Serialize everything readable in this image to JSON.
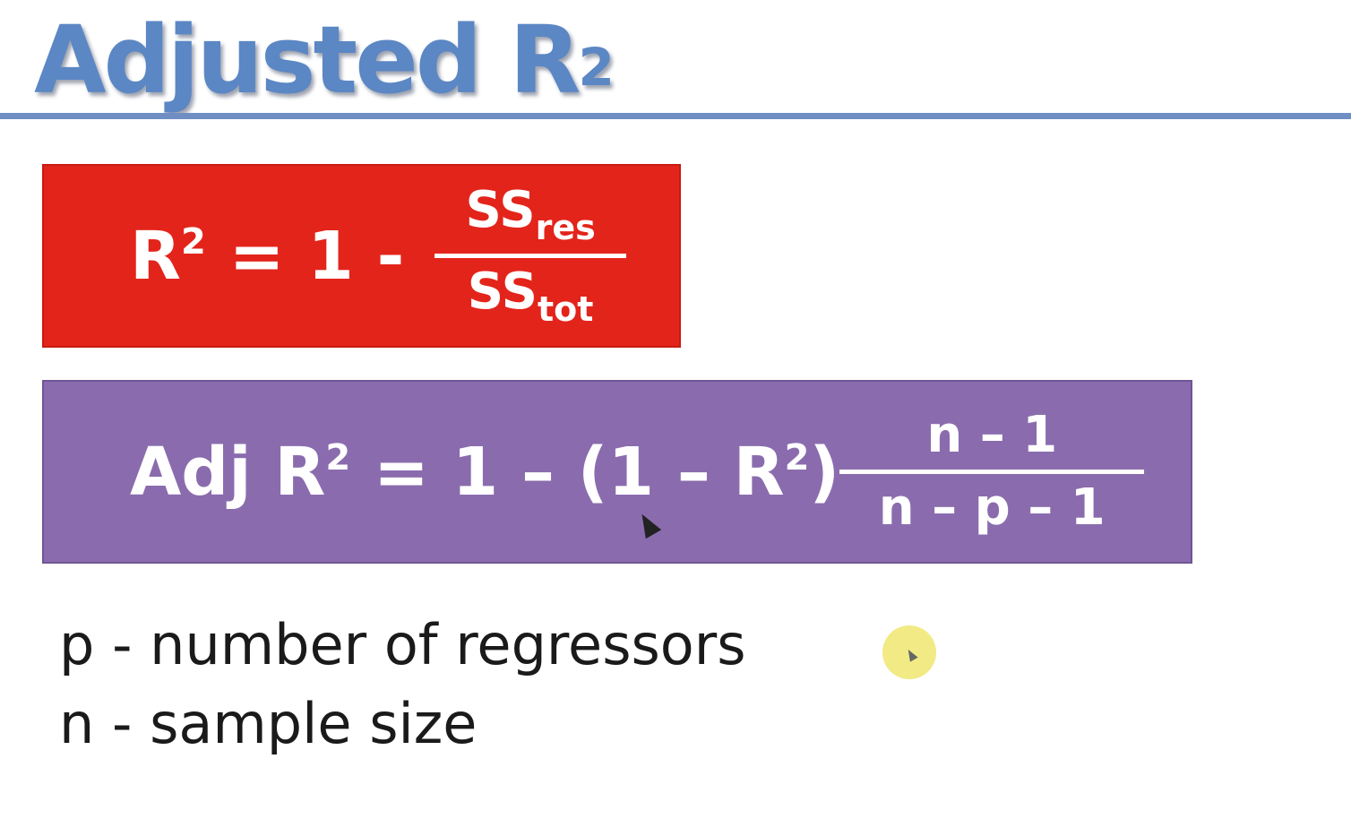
{
  "slide": {
    "title": "Adjusted R",
    "title_superscript": "2"
  },
  "r2_formula": {
    "lhs_symbol": "R",
    "lhs_superscript": "2",
    "equals_part": " = 1 - ",
    "numerator_main": "SS",
    "numerator_sub": "res",
    "denominator_main": "SS",
    "denominator_sub": "tot"
  },
  "adj_formula": {
    "lhs_prefix": "Adj R",
    "lhs_superscript": "2",
    "middle": " = 1 – (1 – R",
    "middle_superscript": "2",
    "middle_close": ")",
    "numerator": "n – 1",
    "denominator": "n – p – 1"
  },
  "definitions": [
    "p - number of regressors",
    "n - sample size"
  ],
  "colors": {
    "title": "#5b87c4",
    "rule": "#6f8fc4",
    "red_box": "#e3241b",
    "purple_box": "#8a6cae",
    "cursor_highlight": "#f0e66e"
  },
  "icons": [
    "move-cursor-icon",
    "pointer-cursor-icon"
  ]
}
